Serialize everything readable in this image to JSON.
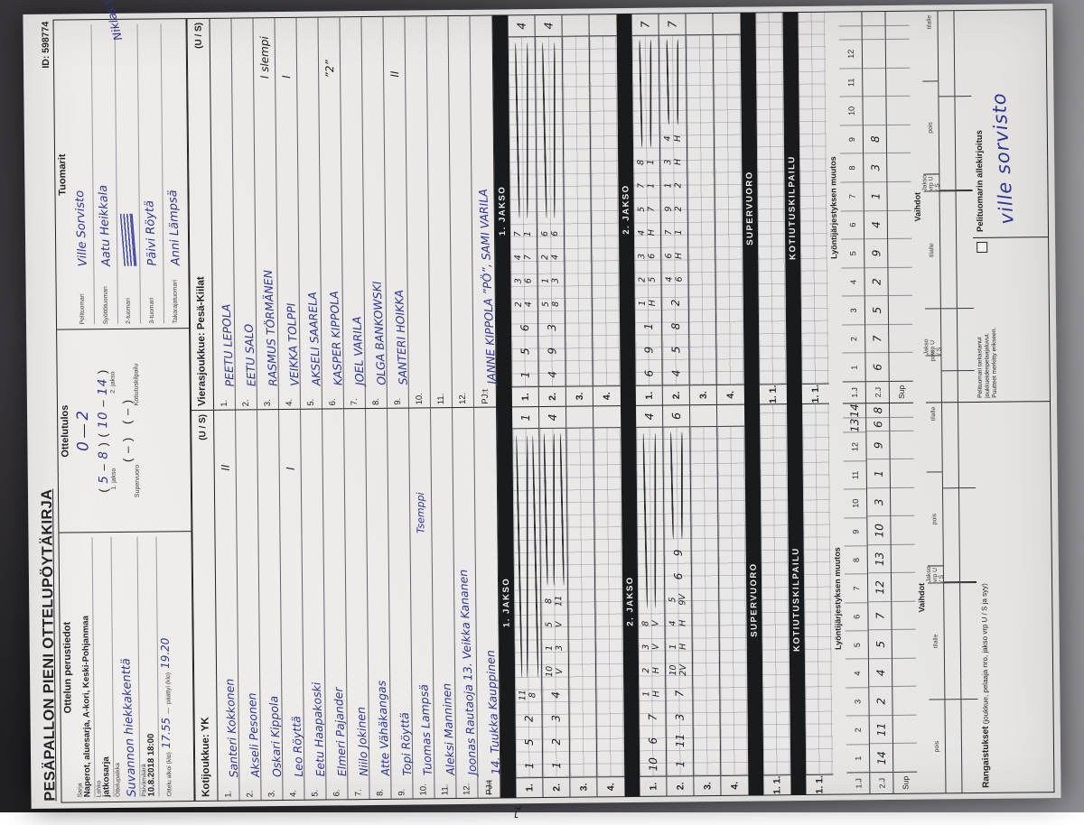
{
  "title": {
    "text": "PESÄPALLON PIENI OTTELUPÖYTÄKIRJA",
    "id": "ID: 598774"
  },
  "perustiedot": {
    "header": "Ottelun perustiedot",
    "sarja_label": "Sarja",
    "sarja": "Naperot, aluesarja, A-kori, Keski-Pohjanmaa",
    "lohko_label": "Lohko",
    "lohko": "jatkosarja",
    "paikka_label": "Ottelupaikka",
    "paikka": "Suvannon hiekkakenttä",
    "pvm_label": "Päivämäärä",
    "pvm": "10.8.2018 18:00",
    "alkoi_label": "Ottelu alkoi (klo)",
    "alkoi": "17.55",
    "dash": "—",
    "paattyi_label": "päättyi (klo)",
    "paattyi": "19.20"
  },
  "tulos": {
    "header": "Ottelutulos",
    "score_home": "0",
    "score_dash": " — ",
    "score_away": "2",
    "j1_open": "( ",
    "j1_home": "5",
    "j1_dash": " – ",
    "j1_away": "8",
    "j1_close": " )",
    "j2_open": "( ",
    "j2_home": "10",
    "j2_dash": " – ",
    "j2_away": "14",
    "j2_close": " )",
    "jakso1_label": "1. jakso",
    "jakso2_label": "2. jakso",
    "sv_paren": "(   –   )",
    "kk_paren": "(   –   )",
    "sv_label": "Supervuoro",
    "kk_label": "Kotiutuskilpailu"
  },
  "tuomarit": {
    "header": "Tuomarit",
    "rows": [
      {
        "label": "Pelituomari",
        "value": "Ville Sorvisto",
        "scribble": false,
        "overflow": false
      },
      {
        "label": "Syöttötuomari",
        "value": "Aatu Heikkala",
        "scribble": false,
        "overflow": false
      },
      {
        "label": "2-tuomari",
        "value": "Niklas Vähä",
        "scribble": true,
        "overflow": true
      },
      {
        "label": "3-tuomari",
        "value": "Päivi Röytä",
        "scribble": false,
        "overflow": false
      },
      {
        "label": "Takarajatuomari",
        "value": "Anni Lämpsä",
        "scribble": false,
        "overflow": false
      }
    ]
  },
  "home": {
    "header": "Kotijoukkue: YK",
    "us": "(U / S)",
    "players": [
      {
        "no": "1.",
        "name": "Santeri Kokkonen",
        "note": "",
        "mark": "II"
      },
      {
        "no": "2.",
        "name": "Akseli Pesonen",
        "note": "",
        "mark": ""
      },
      {
        "no": "3.",
        "name": "Oskari Kippola",
        "note": "",
        "mark": ""
      },
      {
        "no": "4.",
        "name": "Leo Röyttä",
        "note": "",
        "mark": "I"
      },
      {
        "no": "5.",
        "name": "Eetu Haapakoski",
        "note": "",
        "mark": ""
      },
      {
        "no": "6.",
        "name": "Elmeri Pajander",
        "note": "",
        "mark": ""
      },
      {
        "no": "7.",
        "name": "Niilo Jokinen",
        "note": "",
        "mark": ""
      },
      {
        "no": "8.",
        "name": "Atte Vähäkangas",
        "note": "",
        "mark": ""
      },
      {
        "no": "9.",
        "name": "Topi Röyttä",
        "note": "",
        "mark": ""
      },
      {
        "no": "10.",
        "name": "Tuomas Lampsä",
        "note": "Tsemppi",
        "mark": ""
      },
      {
        "no": "11.",
        "name": "Aleksi Manninen",
        "note": "",
        "mark": ""
      },
      {
        "no": "12.",
        "name": "Joonas Rautaoja 13. Veikka Kananen",
        "note": "",
        "mark": ""
      }
    ],
    "pj_label": "PJ:t",
    "pj_struck": true,
    "pj_value": "14. Tuukka Kauppinen"
  },
  "away": {
    "header": "Vierasjoukkue: Pesä-Kiilat",
    "us": "(U / S)",
    "players": [
      {
        "no": "1.",
        "name": "PEETU LEPOLA",
        "note": "",
        "mark": ""
      },
      {
        "no": "2.",
        "name": "EETU SALO",
        "note": "",
        "mark": ""
      },
      {
        "no": "3.",
        "name": "RASMUS TÖRMÄNEN",
        "note": "",
        "mark": "I slempi"
      },
      {
        "no": "4.",
        "name": "VEIKKA TOLPPI",
        "note": "",
        "mark": "I"
      },
      {
        "no": "5.",
        "name": "AKSELI SAARELA",
        "note": "",
        "mark": ""
      },
      {
        "no": "6.",
        "name": "KASPER KIPPOLA",
        "note": "",
        "mark": "”2”"
      },
      {
        "no": "7.",
        "name": "JOEL VARILA",
        "note": "",
        "mark": ""
      },
      {
        "no": "8.",
        "name": "OLGA BANKOWSKI",
        "note": "",
        "mark": ""
      },
      {
        "no": "9.",
        "name": "SANTERI HOIKKA",
        "note": "",
        "mark": "II"
      },
      {
        "no": "10.",
        "name": "",
        "note": "",
        "mark": ""
      },
      {
        "no": "11.",
        "name": "",
        "note": "",
        "mark": ""
      },
      {
        "no": "12.",
        "name": "",
        "note": "",
        "mark": ""
      }
    ],
    "pj_label": "PJ:t",
    "pj_struck": false,
    "pj_value": "JANNE KIPPOLA ”PÖ”, SAMI VARILA"
  },
  "jakso1": {
    "band": "1. JAKSO",
    "home_rows": [
      {
        "label": "1.",
        "marks": [
          "1",
          "5",
          "2",
          "11/8"
        ],
        "strokes": 3,
        "end": "1"
      },
      {
        "label": "2.",
        "marks": [
          "1",
          "2",
          "3",
          "4",
          "10/V",
          "1/3",
          "5/V",
          "8/11"
        ],
        "strokes": 3,
        "end": "4"
      },
      {
        "label": "3.",
        "marks": [],
        "strokes": 0,
        "end": ""
      },
      {
        "label": "4.",
        "marks": [],
        "strokes": 0,
        "end": ""
      }
    ],
    "away_rows": [
      {
        "label": "1.",
        "marks": [
          "1",
          "5",
          "6",
          "2/4",
          "3/6",
          "4/7",
          "7/1"
        ],
        "strokes": 2,
        "end": "4"
      },
      {
        "label": "2.",
        "marks": [
          "4",
          "9",
          "3",
          "5/8",
          "1/3",
          "2/4",
          "6/6"
        ],
        "strokes": 2,
        "end": "4"
      },
      {
        "label": "3.",
        "marks": [],
        "strokes": 0,
        "end": ""
      },
      {
        "label": "4.",
        "marks": [],
        "strokes": 0,
        "end": ""
      }
    ]
  },
  "jakso2": {
    "band": "2. JAKSO",
    "home_rows": [
      {
        "label": "1.",
        "marks": [
          "10",
          "6",
          "7",
          "1/H",
          "2/H",
          "3/V",
          "8/V"
        ],
        "strokes": 2,
        "end": "4"
      },
      {
        "label": "2.",
        "marks": [
          "1",
          "11",
          "3",
          "7",
          "10/2V",
          "1/H",
          "4/H",
          "5/9V",
          "6",
          "9"
        ],
        "strokes": 2,
        "end": "6"
      },
      {
        "label": "3.",
        "marks": [],
        "strokes": 0,
        "end": ""
      },
      {
        "label": "4.",
        "marks": [],
        "strokes": 0,
        "end": ""
      }
    ],
    "away_rows": [
      {
        "label": "1.",
        "marks": [
          "6",
          "9",
          "1",
          "1/H",
          "2/5",
          "3/6",
          "4/H",
          "5/7",
          "7/1",
          "8/1"
        ],
        "strokes": 2,
        "end": "7"
      },
      {
        "label": "2.",
        "marks": [
          "4",
          "5",
          "8",
          "2",
          "4/6",
          "6/H",
          "7/1",
          "9/2",
          "1/2",
          "3/H",
          "4/H"
        ],
        "strokes": 2,
        "end": "7"
      },
      {
        "label": "3.",
        "marks": [],
        "strokes": 0,
        "end": ""
      },
      {
        "label": "4.",
        "marks": [],
        "strokes": 0,
        "end": ""
      }
    ]
  },
  "supervuoro": {
    "band": "SUPERVUORO",
    "row_label": "1. 1."
  },
  "kotiutus": {
    "band": "KOTIUTUSKILPAILU",
    "row_label": "1. 1."
  },
  "lyonti": {
    "header": "Lyöntijärjestyksen muutos",
    "row_labels": [
      "1.J",
      "2.J",
      "Sup"
    ],
    "printed": [
      "1",
      "2",
      "3",
      "4",
      "5",
      "6",
      "7",
      "8",
      "9",
      "10",
      "11",
      "12"
    ],
    "home": {
      "j1_extra": [
        "13",
        "14"
      ],
      "j2": [
        "14",
        "11",
        "2",
        "4",
        "5",
        "7",
        "12",
        "13",
        "10",
        "3",
        "1",
        "9"
      ],
      "j2_extra": [
        "6",
        "8"
      ]
    },
    "away": {
      "j1_extra": [
        "",
        ""
      ],
      "j2": [
        "6",
        "7",
        "5",
        "2",
        "9",
        "4",
        "1",
        "3",
        "8",
        "",
        "",
        ""
      ],
      "j2_extra": [
        "",
        ""
      ]
    }
  },
  "vaihdot": {
    "header": "Vaihdot",
    "cols": [
      "pois",
      "tilalle",
      "Jakso vrp U / S",
      "pois",
      "tilalle",
      "Jakso vrp U / S"
    ],
    "empty_rows": 2
  },
  "bottom": {
    "rang_bold": "Rangaistukset",
    "rang_rest": " (joukkue, pelaaja nro, jakso vrp U / S ja syy)",
    "check1": "Pelituomari tarkastanut",
    "check2": "joukkueidenpelaajaluvut.",
    "check3": "Puutteet merkitty erikseen.",
    "sig_label": "Pelituomarin allekirjoitus",
    "signature": "ville sorvisto"
  },
  "stray": {
    "corner_mark": "⌐ʟ"
  }
}
